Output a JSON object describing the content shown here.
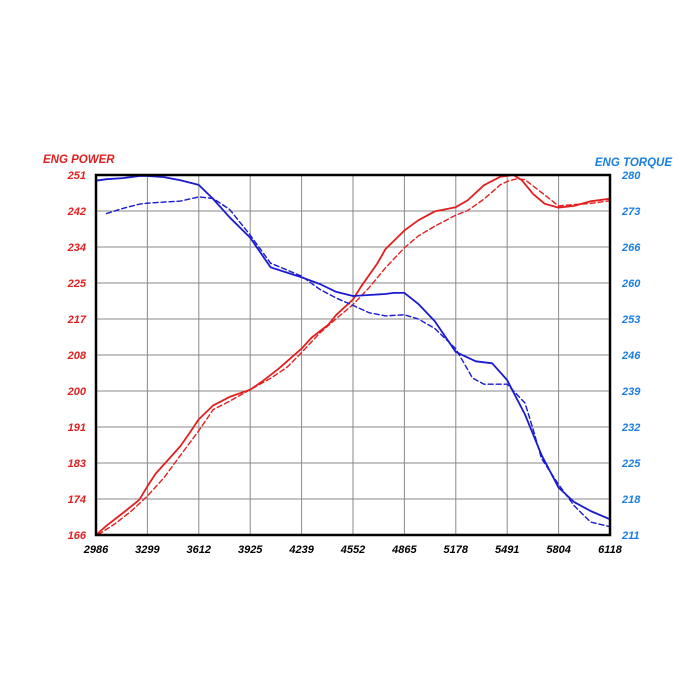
{
  "chart_data": {
    "type": "line",
    "left_axis_title": "ENG POWER",
    "right_axis_title": "ENG TORQUE",
    "xlim": [
      2986,
      6118
    ],
    "y_left_lim": [
      166,
      251
    ],
    "y_right_lim": [
      211,
      280
    ],
    "x_ticks": [
      "2986",
      "3299",
      "3612",
      "3925",
      "4239",
      "4552",
      "4865",
      "5178",
      "5491",
      "5804",
      "6118"
    ],
    "y_left_ticks": [
      "166",
      "174",
      "183",
      "191",
      "200",
      "208",
      "217",
      "225",
      "234",
      "242",
      "251"
    ],
    "y_right_ticks": [
      "211",
      "218",
      "225",
      "232",
      "239",
      "246",
      "253",
      "260",
      "266",
      "273",
      "280"
    ],
    "grid": true,
    "colors": {
      "power": "#e02020",
      "torque": "#1a1ad0",
      "power_axis": "#e02020",
      "torque_axis": "#1b7fe0",
      "grid": "#8a8a8a"
    },
    "series": [
      {
        "axis": "left",
        "line_style": "solid",
        "color": "#e02020",
        "x": [
          2986,
          3050,
          3150,
          3250,
          3299,
          3350,
          3420,
          3500,
          3560,
          3612,
          3700,
          3800,
          3925,
          4000,
          4100,
          4239,
          4300,
          4400,
          4450,
          4552,
          4600,
          4700,
          4750,
          4865,
          4950,
          5050,
          5178,
          5250,
          5350,
          5450,
          5530,
          5580,
          5650,
          5720,
          5804,
          5900,
          6000,
          6118
        ],
        "values": [
          166.0,
          168.2,
          171.2,
          174.3,
          177.5,
          180.5,
          183.5,
          187.0,
          190.3,
          193.3,
          196.6,
          198.6,
          200.3,
          202.3,
          205.3,
          210.0,
          212.6,
          215.6,
          218.0,
          221.6,
          224.6,
          230.1,
          233.5,
          237.9,
          240.3,
          242.4,
          243.4,
          245.0,
          248.6,
          250.6,
          251.0,
          249.8,
          246.5,
          244.2,
          243.3,
          243.7,
          244.8,
          245.4
        ]
      },
      {
        "axis": "left",
        "line_style": "dashed",
        "color": "#e02020",
        "x": [
          3000,
          3100,
          3200,
          3299,
          3400,
          3500,
          3612,
          3700,
          3800,
          3925,
          4050,
          4150,
          4239,
          4350,
          4450,
          4552,
          4650,
          4750,
          4865,
          4950,
          5050,
          5178,
          5250,
          5350,
          5450,
          5500,
          5550,
          5600,
          5700,
          5804,
          5900,
          6000,
          6118
        ],
        "values": [
          166.1,
          168.6,
          171.6,
          175.2,
          179.5,
          184.8,
          190.6,
          195.6,
          197.6,
          200.3,
          203.0,
          205.6,
          209.1,
          213.7,
          217.1,
          220.4,
          224.4,
          229.1,
          233.8,
          236.6,
          238.9,
          241.5,
          242.6,
          245.3,
          248.7,
          249.6,
          250.1,
          249.9,
          246.9,
          243.7,
          244.0,
          244.3,
          244.9
        ]
      },
      {
        "axis": "right",
        "line_style": "solid",
        "color": "#1a1ad0",
        "x": [
          2986,
          3050,
          3150,
          3250,
          3299,
          3400,
          3500,
          3612,
          3700,
          3800,
          3925,
          4050,
          4150,
          4239,
          4350,
          4450,
          4552,
          4650,
          4750,
          4800,
          4865,
          4950,
          5050,
          5178,
          5300,
          5400,
          5491,
          5600,
          5700,
          5804,
          5900,
          6000,
          6118
        ],
        "values": [
          278.9,
          279.2,
          279.4,
          279.8,
          279.8,
          279.6,
          279.0,
          278.1,
          275.4,
          271.9,
          268.0,
          262.3,
          261.3,
          260.4,
          259.1,
          257.6,
          256.8,
          257.0,
          257.2,
          257.4,
          257.4,
          255.3,
          252.0,
          246.1,
          244.3,
          243.9,
          240.7,
          234.1,
          226.4,
          220.1,
          217.3,
          215.6,
          214.0
        ]
      },
      {
        "axis": "right",
        "line_style": "dashed",
        "color": "#1a1ad0",
        "x": [
          3050,
          3150,
          3250,
          3299,
          3400,
          3500,
          3612,
          3700,
          3800,
          3925,
          4050,
          4150,
          4239,
          4350,
          4450,
          4552,
          4650,
          4750,
          4865,
          4950,
          5050,
          5178,
          5280,
          5350,
          5491,
          5600,
          5650,
          5700,
          5804,
          5900,
          6000,
          6118
        ],
        "values": [
          272.6,
          273.6,
          274.4,
          274.6,
          274.8,
          275.0,
          275.8,
          275.5,
          273.4,
          268.5,
          263.1,
          261.8,
          260.6,
          258.1,
          256.4,
          255.0,
          253.6,
          253.0,
          253.2,
          252.4,
          250.6,
          246.7,
          241.1,
          239.9,
          239.9,
          236.3,
          231.2,
          225.7,
          220.7,
          216.6,
          213.5,
          212.6
        ]
      }
    ]
  }
}
